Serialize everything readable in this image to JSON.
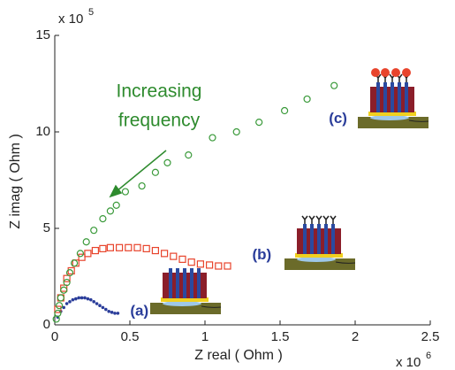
{
  "chart_data": {
    "type": "scatter",
    "xlabel": "Z real ( Ohm )",
    "ylabel": "Z imag ( Ohm )",
    "x_exponent": {
      "base": "x 10",
      "power": "6"
    },
    "y_exponent": {
      "base": "x 10",
      "power": "5"
    },
    "xlim": [
      0,
      2.5
    ],
    "ylim": [
      0,
      15
    ],
    "xticks": [
      0,
      0.5,
      1,
      1.5,
      2,
      2.5
    ],
    "yticks": [
      0,
      5,
      10,
      15
    ],
    "annotation": {
      "lines": [
        "Increasing",
        "frequency"
      ],
      "color": "#2e8b2e"
    },
    "series": [
      {
        "name": "(a)",
        "color": "#2a3d9a",
        "marker": "dot",
        "x": [
          0.02,
          0.04,
          0.06,
          0.08,
          0.1,
          0.12,
          0.14,
          0.16,
          0.18,
          0.2,
          0.22,
          0.24,
          0.26,
          0.28,
          0.3,
          0.32,
          0.34,
          0.36,
          0.38,
          0.4,
          0.42
        ],
        "values": [
          0.4,
          0.7,
          0.9,
          1.1,
          1.2,
          1.3,
          1.35,
          1.4,
          1.4,
          1.4,
          1.35,
          1.3,
          1.2,
          1.1,
          1.0,
          0.9,
          0.8,
          0.7,
          0.65,
          0.6,
          0.6
        ]
      },
      {
        "name": "(b)",
        "color": "#e8442c",
        "marker": "square",
        "x": [
          0.02,
          0.04,
          0.06,
          0.08,
          0.11,
          0.14,
          0.18,
          0.22,
          0.27,
          0.32,
          0.37,
          0.43,
          0.49,
          0.55,
          0.61,
          0.67,
          0.73,
          0.79,
          0.85,
          0.91,
          0.97,
          1.03,
          1.09,
          1.15
        ],
        "values": [
          0.8,
          1.4,
          1.9,
          2.4,
          2.8,
          3.2,
          3.5,
          3.7,
          3.85,
          3.95,
          4.0,
          4.0,
          4.0,
          4.0,
          3.95,
          3.85,
          3.7,
          3.55,
          3.4,
          3.25,
          3.15,
          3.1,
          3.05,
          3.05
        ]
      },
      {
        "name": "(c)",
        "color": "#3a9a3a",
        "marker": "circle",
        "x": [
          0.01,
          0.02,
          0.03,
          0.04,
          0.06,
          0.08,
          0.1,
          0.13,
          0.17,
          0.21,
          0.26,
          0.32,
          0.37,
          0.41,
          0.47,
          0.58,
          0.67,
          0.75,
          0.89,
          1.05,
          1.21,
          1.36,
          1.53,
          1.68,
          1.86
        ],
        "values": [
          0.3,
          0.6,
          1.0,
          1.4,
          1.8,
          2.2,
          2.7,
          3.2,
          3.7,
          4.3,
          4.9,
          5.5,
          5.9,
          6.2,
          6.9,
          7.2,
          7.9,
          8.4,
          8.8,
          9.7,
          10.0,
          10.5,
          11.1,
          11.7,
          12.4
        ]
      }
    ]
  }
}
